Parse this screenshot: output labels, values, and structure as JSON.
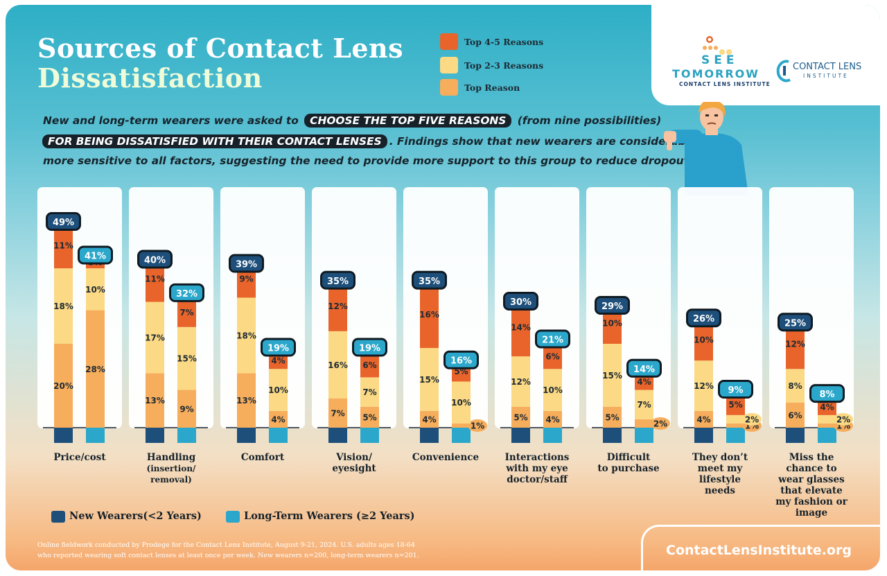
{
  "title": {
    "line1": "Sources of Contact Lens",
    "line2": "Dissatisfaction"
  },
  "key": {
    "top45": "Top 4-5 Reasons",
    "top23": "Top 2-3 Reasons",
    "top1": "Top Reason"
  },
  "logo_see": {
    "see": "SEE",
    "tomorrow": "TOMORROW",
    "sub": "CONTACT LENS INSTITUTE"
  },
  "logo_cli": {
    "line1": "CONTACT LENS",
    "line2": "INSTITUTE"
  },
  "intro": {
    "l1_pre": "New and long-term wearers were asked to",
    "l1_pill": "CHOOSE THE TOP FIVE REASONS",
    "l1_post": "(from nine possibilities)",
    "l2_pill": "FOR BEING DISSATISFIED WITH THEIR CONTACT LENSES",
    "l2_post": ". Findings show that new wearers are considerably",
    "l3": "more sensitive to all factors, suggesting the need to provide more support to this group to reduce dropout rates."
  },
  "legend": {
    "new": "New Wearers(<2 Years)",
    "long": "Long-Term Wearers (≥2 Years)"
  },
  "footnote": {
    "l1": "Online fieldwork conducted by Prodege for the Contact Lens Institute, August 9-21, 2024. U.S. adults ages 18-64",
    "l2": "who reported wearing soft contact lenses at least once per week. New wearers n=200, long-term wearers n=201."
  },
  "url": "ContactLensInstitute.org",
  "colors": {
    "top45": "#e8642a",
    "top23": "#fbd985",
    "top1": "#f6ad5c",
    "new_wearers": "#1d4f7a",
    "long_term_wearers": "#2ba7cb"
  },
  "chart_data": {
    "type": "bar",
    "stacked": true,
    "unit": "%",
    "categories": [
      [
        "Price/cost"
      ],
      [
        "Handling",
        "(insertion/",
        "removal)"
      ],
      [
        "Comfort"
      ],
      [
        "Vision/",
        "eyesight"
      ],
      [
        "Convenience"
      ],
      [
        "Interactions",
        "with my eye",
        "doctor/staff"
      ],
      [
        "Difficult",
        "to purchase"
      ],
      [
        "They don’t",
        "meet my",
        "lifestyle",
        "needs"
      ],
      [
        "Miss the",
        "chance to",
        "wear glasses",
        "that elevate",
        "my fashion or",
        "image"
      ]
    ],
    "segment_order": [
      "Top Reason",
      "Top 2-3 Reasons",
      "Top 4-5 Reasons"
    ],
    "series": [
      {
        "name": "New Wearers(<2 Years)",
        "totals": [
          49,
          40,
          39,
          35,
          35,
          30,
          29,
          26,
          25
        ],
        "top_reason": [
          20,
          13,
          13,
          7,
          4,
          5,
          5,
          4,
          6
        ],
        "top_2_3": [
          18,
          17,
          18,
          16,
          15,
          12,
          15,
          12,
          8
        ],
        "top_4_5": [
          11,
          11,
          9,
          12,
          16,
          14,
          10,
          10,
          12
        ]
      },
      {
        "name": "Long-Term Wearers (≥2 Years)",
        "totals": [
          41,
          32,
          19,
          19,
          16,
          21,
          14,
          9,
          8
        ],
        "top_reason": [
          28,
          9,
          4,
          5,
          1,
          4,
          2,
          1,
          1
        ],
        "top_2_3": [
          10,
          15,
          10,
          7,
          10,
          10,
          7,
          2,
          2
        ],
        "top_4_5": [
          3,
          7,
          4,
          6,
          5,
          6,
          4,
          5,
          4
        ]
      }
    ],
    "ylim": [
      0,
      55
    ]
  }
}
